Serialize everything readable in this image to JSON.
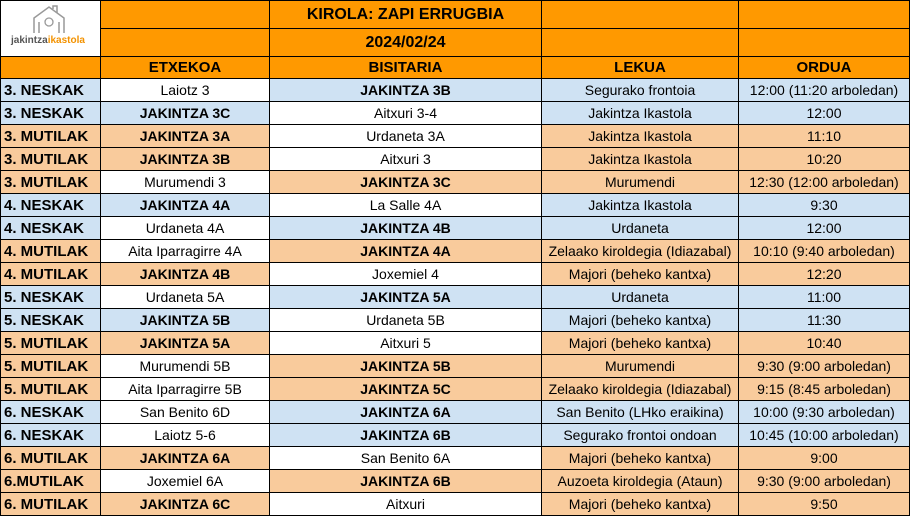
{
  "logo": {
    "text_part1": "jakintza",
    "text_part2": "ikastola"
  },
  "header": {
    "title": "KIROLA: ZAPI ERRUGBIA",
    "date": "2024/02/24"
  },
  "columns": [
    "",
    "ETXEKOA",
    "BISITARIA",
    "LEKUA",
    "ORDUA"
  ],
  "colors": {
    "header": "#ff9900",
    "neskak": "#cfe2f3",
    "mutilak": "#f9cb9c",
    "other_team": "#ffffff"
  },
  "rows": [
    {
      "cat": "3. NESKAK",
      "home": "Laiotz 3",
      "away": "JAKINTZA 3B",
      "place": "Segurako frontoia",
      "time": "12:00 (11:20 arboledan)",
      "type": "neskak",
      "jak": "away"
    },
    {
      "cat": "3. NESKAK",
      "home": "JAKINTZA 3C",
      "away": "Aitxuri 3-4",
      "place": "Jakintza Ikastola",
      "time": "12:00",
      "type": "neskak",
      "jak": "home"
    },
    {
      "cat": "3. MUTILAK",
      "home": "JAKINTZA 3A",
      "away": "Urdaneta 3A",
      "place": "Jakintza Ikastola",
      "time": "11:10",
      "type": "mutilak",
      "jak": "home"
    },
    {
      "cat": "3. MUTILAK",
      "home": "JAKINTZA 3B",
      "away": "Aitxuri 3",
      "place": "Jakintza Ikastola",
      "time": "10:20",
      "type": "mutilak",
      "jak": "home"
    },
    {
      "cat": "3. MUTILAK",
      "home": "Murumendi 3",
      "away": "JAKINTZA 3C",
      "place": "Murumendi",
      "time": "12:30 (12:00 arboledan)",
      "type": "mutilak",
      "jak": "away"
    },
    {
      "cat": "4. NESKAK",
      "home": "JAKINTZA 4A",
      "away": "La Salle 4A",
      "place": "Jakintza Ikastola",
      "time": "9:30",
      "type": "neskak",
      "jak": "home"
    },
    {
      "cat": "4. NESKAK",
      "home": "Urdaneta 4A",
      "away": "JAKINTZA 4B",
      "place": "Urdaneta",
      "time": "12:00",
      "type": "neskak",
      "jak": "away"
    },
    {
      "cat": "4. MUTILAK",
      "home": "Aita Iparragirre 4A",
      "away": "JAKINTZA 4A",
      "place": "Zelaako kiroldegia (Idiazabal)",
      "time": "10:10 (9:40 arboledan)",
      "type": "mutilak",
      "jak": "away"
    },
    {
      "cat": "4. MUTILAK",
      "home": "JAKINTZA 4B",
      "away": "Joxemiel 4",
      "place": "Majori (beheko kantxa)",
      "time": "12:20",
      "type": "mutilak",
      "jak": "home"
    },
    {
      "cat": "5. NESKAK",
      "home": "Urdaneta 5A",
      "away": "JAKINTZA 5A",
      "place": "Urdaneta",
      "time": "11:00",
      "type": "neskak",
      "jak": "away"
    },
    {
      "cat": "5. NESKAK",
      "home": "JAKINTZA 5B",
      "away": "Urdaneta 5B",
      "place": "Majori (beheko kantxa)",
      "time": "11:30",
      "type": "neskak",
      "jak": "home"
    },
    {
      "cat": "5. MUTILAK",
      "home": "JAKINTZA 5A",
      "away": "Aitxuri 5",
      "place": "Majori (beheko kantxa)",
      "time": "10:40",
      "type": "mutilak",
      "jak": "home"
    },
    {
      "cat": "5. MUTILAK",
      "home": "Murumendi 5B",
      "away": "JAKINTZA 5B",
      "place": "Murumendi",
      "time": "9:30 (9:00 arboledan)",
      "type": "mutilak",
      "jak": "away"
    },
    {
      "cat": "5. MUTILAK",
      "home": "Aita Iparragirre 5B",
      "away": "JAKINTZA 5C",
      "place": "Zelaako kiroldegia (Idiazabal)",
      "time": "9:15 (8:45 arboledan)",
      "type": "mutilak",
      "jak": "away"
    },
    {
      "cat": "6. NESKAK",
      "home": "San Benito 6D",
      "away": "JAKINTZA 6A",
      "place": "San Benito (LHko eraikina)",
      "time": "10:00 (9:30 arboledan)",
      "type": "neskak",
      "jak": "away"
    },
    {
      "cat": "6. NESKAK",
      "home": "Laiotz 5-6",
      "away": "JAKINTZA 6B",
      "place": "Segurako frontoi ondoan",
      "time": "10:45 (10:00 arboledan)",
      "type": "neskak",
      "jak": "away"
    },
    {
      "cat": "6. MUTILAK",
      "home": "JAKINTZA 6A",
      "away": "San Benito 6A",
      "place": "Majori (beheko kantxa)",
      "time": "9:00",
      "type": "mutilak",
      "jak": "home"
    },
    {
      "cat": "6.MUTILAK",
      "home": "Joxemiel 6A",
      "away": "JAKINTZA 6B",
      "place": "Auzoeta kiroldegia (Ataun)",
      "time": "9:30 (9:00 arboledan)",
      "type": "mutilak",
      "jak": "away"
    },
    {
      "cat": "6. MUTILAK",
      "home": "JAKINTZA 6C",
      "away": "Aitxuri",
      "place": "Majori (beheko kantxa)",
      "time": "9:50",
      "type": "mutilak",
      "jak": "home"
    }
  ]
}
